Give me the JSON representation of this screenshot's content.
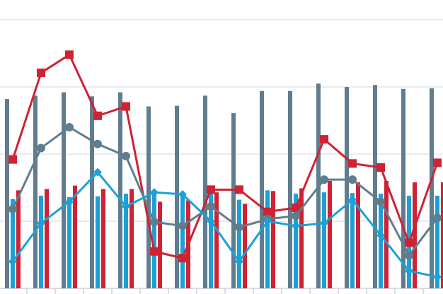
{
  "chart_data": {
    "type": "combo",
    "categories": [
      null,
      null,
      null,
      null,
      null,
      null,
      null,
      null,
      null,
      null,
      null,
      null,
      null,
      null,
      null,
      null
    ],
    "ylim": [
      0,
      4.295
    ],
    "yticks": [
      0,
      1,
      2,
      3,
      4
    ],
    "grid": true,
    "series": [
      {
        "kind": "bar",
        "color": "#5f7d8e",
        "values": [
          2.82,
          2.87,
          2.92,
          2.86,
          2.92,
          2.71,
          2.72,
          2.87,
          2.61,
          2.94,
          2.94,
          3.05,
          3.0,
          3.03,
          2.97,
          2.98
        ]
      },
      {
        "kind": "bar",
        "color": "#1ba1d6",
        "values": [
          1.33,
          1.38,
          1.36,
          1.37,
          1.41,
          1.44,
          1.4,
          1.45,
          1.32,
          1.46,
          1.41,
          1.43,
          1.42,
          1.41,
          1.38,
          1.38
        ]
      },
      {
        "kind": "bar",
        "color": "#cf2233",
        "values": [
          1.46,
          1.48,
          1.53,
          1.48,
          1.48,
          1.29,
          1.31,
          1.43,
          1.26,
          1.45,
          1.49,
          1.6,
          1.58,
          1.6,
          1.58,
          1.58
        ]
      },
      {
        "kind": "line",
        "marker": "square",
        "color": "#cf2233",
        "values": [
          1.92,
          3.21,
          3.48,
          2.57,
          2.71,
          0.55,
          0.45,
          1.47,
          1.47,
          1.14,
          1.2,
          2.22,
          1.86,
          1.8,
          0.68,
          1.87
        ]
      },
      {
        "kind": "line",
        "marker": "circle",
        "color": "#5f7d8e",
        "values": [
          1.18,
          2.09,
          2.4,
          2.15,
          1.97,
          0.99,
          0.93,
          1.22,
          0.91,
          1.03,
          1.08,
          1.62,
          1.62,
          1.29,
          0.49,
          1.05
        ]
      },
      {
        "kind": "line",
        "marker": "diamond",
        "color": "#1ba1d6",
        "values": [
          0.4,
          0.97,
          1.29,
          1.73,
          1.22,
          1.43,
          1.4,
          1.0,
          0.4,
          1.0,
          0.93,
          0.97,
          1.32,
          0.79,
          0.26,
          0.17
        ]
      }
    ]
  }
}
